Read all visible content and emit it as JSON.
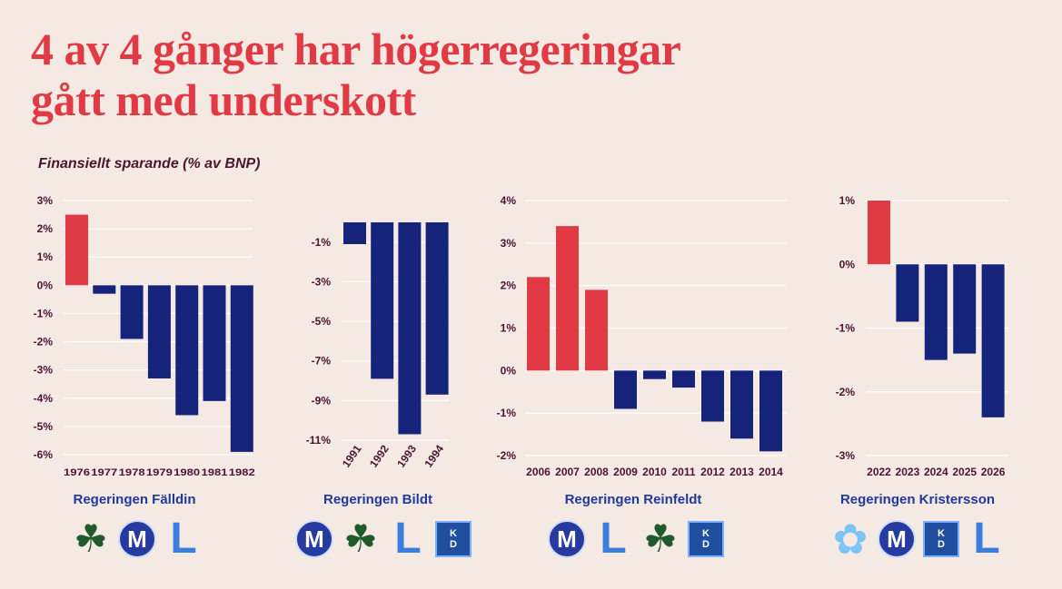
{
  "title_line1": "4 av 4 gånger har högerregeringar",
  "title_line2": "gått med underskott",
  "subtitle": "Finansiellt sparande (% av BNP)",
  "colors": {
    "positive": "#e03a45",
    "negative": "#16237a",
    "grid": "#ffffff",
    "axis_text": "#4a1530",
    "label": "#1f3a9c"
  },
  "chart_data": [
    {
      "type": "bar",
      "government": "Regeringen Fälldin",
      "categories": [
        "1976",
        "1977",
        "1978",
        "1979",
        "1980",
        "1981",
        "1982"
      ],
      "values": [
        2.5,
        -0.3,
        -1.9,
        -3.3,
        -4.6,
        -4.1,
        -5.9
      ],
      "ylim": [
        -6,
        3
      ],
      "ticks": [
        3,
        2,
        1,
        0,
        -1,
        -2,
        -3,
        -4,
        -5,
        -6
      ],
      "tick_labels": [
        "3%",
        "2%",
        "1%",
        "0%",
        "-1%",
        "-2%",
        "-3%",
        "-4%",
        "-5%",
        "-6%"
      ],
      "rotate_x": false,
      "logos": [
        "Centerpartiet-clover-icon",
        "Moderaterna-M-icon",
        "Liberalerna-L-icon"
      ]
    },
    {
      "type": "bar",
      "government": "Regeringen Bildt",
      "categories": [
        "1991",
        "1992",
        "1993",
        "1994"
      ],
      "values": [
        -1.1,
        -7.9,
        -10.7,
        -8.7
      ],
      "ylim": [
        -11,
        0
      ],
      "ticks": [
        -1,
        -3,
        -5,
        -7,
        -9,
        -11
      ],
      "tick_labels": [
        "-1%",
        "-3%",
        "-5%",
        "-7%",
        "-9%",
        "-11%"
      ],
      "rotate_x": true,
      "logos": [
        "Moderaterna-M-icon",
        "Centerpartiet-clover-icon",
        "Liberalerna-L-icon",
        "KD-icon"
      ]
    },
    {
      "type": "bar",
      "government": "Regeringen Reinfeldt",
      "categories": [
        "2006",
        "2007",
        "2008",
        "2009",
        "2010",
        "2011",
        "2012",
        "2013",
        "2014"
      ],
      "values": [
        2.2,
        3.4,
        1.9,
        -0.9,
        -0.2,
        -0.4,
        -1.2,
        -1.6,
        -1.9
      ],
      "ylim": [
        -2,
        4
      ],
      "ticks": [
        4,
        3,
        2,
        1,
        0,
        -1,
        -2
      ],
      "tick_labels": [
        "4%",
        "3%",
        "2%",
        "1%",
        "0%",
        "-1%",
        "-2%"
      ],
      "rotate_x": false,
      "logos": [
        "Moderaterna-M-icon",
        "Liberalerna-L-icon",
        "Centerpartiet-clover-icon",
        "KD-icon"
      ]
    },
    {
      "type": "bar",
      "government": "Regeringen Kristersson",
      "categories": [
        "2022",
        "2023",
        "2024",
        "2025",
        "2026"
      ],
      "values": [
        1.0,
        -0.9,
        -1.5,
        -1.4,
        -2.4
      ],
      "ylim": [
        -3,
        1
      ],
      "ticks": [
        1,
        0,
        -1,
        -2,
        -3
      ],
      "tick_labels": [
        "1%",
        "0%",
        "-1%",
        "-2%",
        "-3%"
      ],
      "rotate_x": false,
      "logos": [
        "Sverigedemokraterna-flower-icon",
        "Moderaterna-M-icon",
        "KD-icon",
        "Liberalerna-L-icon"
      ]
    }
  ],
  "logo_text": {
    "m": "M",
    "l": "L",
    "kd_top": "K",
    "kd_bottom": "D",
    "clover": "☘",
    "flower": "✿"
  }
}
